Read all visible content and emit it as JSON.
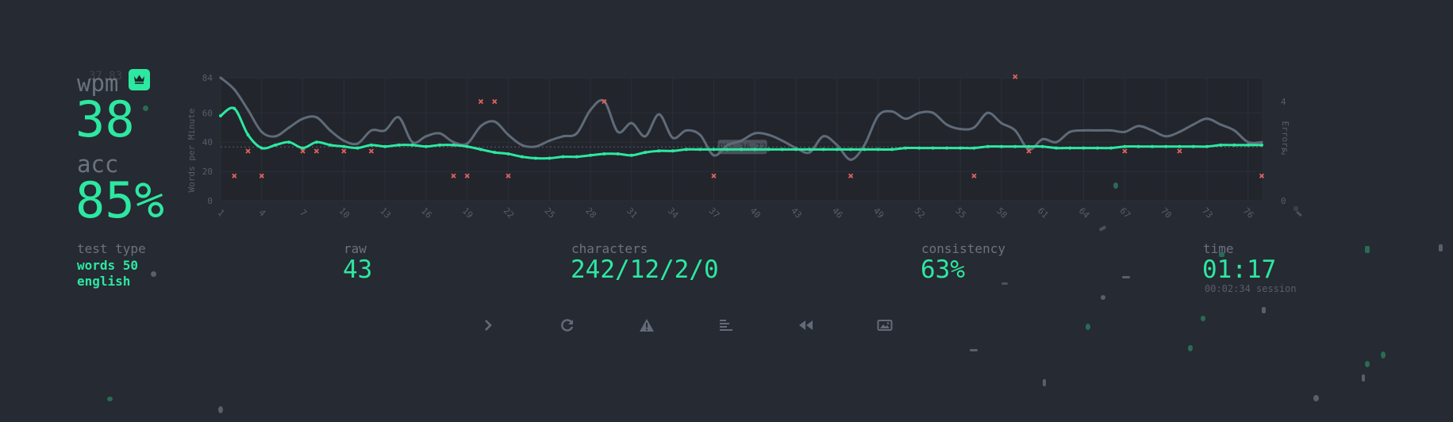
{
  "result": {
    "wpm_label": "wpm",
    "wpm_value": "38",
    "acc_label": "acc",
    "acc_value": "85%",
    "pb_ghost": "37.83 wpm"
  },
  "stats": {
    "test_type_label": "test type",
    "test_type_line1": "words 50",
    "test_type_line2": "english",
    "raw_label": "raw",
    "raw_value": "43",
    "characters_label": "characters",
    "characters_value": "242/12/2/0",
    "consistency_label": "consistency",
    "consistency_value": "63%",
    "time_label": "time",
    "time_value": "01:17",
    "session": "00:02:34 session"
  },
  "buttons": [
    {
      "icon": "chevron-right-icon",
      "label": "next test"
    },
    {
      "icon": "restart-icon",
      "label": "restart test"
    },
    {
      "icon": "warning-icon",
      "label": "report"
    },
    {
      "icon": "words-history-icon",
      "label": "words history"
    },
    {
      "icon": "replay-icon",
      "label": "watch replay"
    },
    {
      "icon": "screenshot-icon",
      "label": "save screenshot"
    }
  ],
  "colors": {
    "background": "#262a33",
    "accent": "#2de8a0",
    "raw_line": "#5f6b78",
    "error": "#e0625c",
    "muted": "#646b78"
  },
  "chart_data": {
    "type": "line",
    "ylabel": "Words per Minute",
    "y2label": "Errors",
    "pb_label": "PB: 36.72",
    "pb_value": 36.72,
    "ylim": [
      0,
      84
    ],
    "yticks": [
      0,
      20,
      40,
      60,
      84
    ],
    "y2lim": [
      0,
      4
    ],
    "y2ticks": [
      0,
      2,
      4
    ],
    "x_ticks": [
      1,
      4,
      7,
      10,
      13,
      16,
      19,
      22,
      25,
      28,
      31,
      34,
      37,
      40,
      43,
      46,
      49,
      52,
      55,
      58,
      61,
      64,
      67,
      70,
      73,
      76
    ],
    "xlim": [
      1,
      77
    ],
    "series": [
      {
        "name": "wpm",
        "values": [
          58,
          63,
          45,
          36,
          38,
          40,
          36,
          40,
          38,
          37,
          36,
          38,
          37,
          38,
          38,
          37,
          38,
          38,
          37,
          35,
          33,
          32,
          30,
          29,
          29,
          30,
          30,
          31,
          32,
          32,
          31,
          33,
          34,
          34,
          35,
          35,
          35,
          35,
          35,
          35,
          35,
          35,
          35,
          35,
          35,
          35,
          35,
          35,
          35,
          35,
          36,
          36,
          36,
          36,
          36,
          36,
          37,
          37,
          37,
          37,
          37,
          36,
          36,
          36,
          36,
          36,
          37,
          37,
          37,
          37,
          37,
          37,
          37,
          38,
          38,
          38,
          38
        ]
      },
      {
        "name": "raw",
        "values": [
          84,
          76,
          62,
          47,
          44,
          50,
          56,
          57,
          48,
          41,
          39,
          48,
          48,
          57,
          40,
          44,
          46,
          40,
          39,
          51,
          54,
          45,
          38,
          37,
          41,
          44,
          46,
          62,
          68,
          47,
          53,
          44,
          59,
          43,
          48,
          45,
          31,
          38,
          41,
          46,
          45,
          41,
          36,
          33,
          44,
          38,
          28,
          38,
          58,
          61,
          56,
          60,
          60,
          52,
          49,
          50,
          60,
          53,
          48,
          35,
          42,
          40,
          47,
          48,
          48,
          48,
          47,
          51,
          48,
          44,
          47,
          52,
          56,
          52,
          48,
          40,
          40
        ]
      },
      {
        "name": "errors",
        "points": [
          [
            2,
            1
          ],
          [
            3,
            2
          ],
          [
            4,
            1
          ],
          [
            7,
            2
          ],
          [
            8,
            2
          ],
          [
            10,
            2
          ],
          [
            12,
            2
          ],
          [
            18,
            1
          ],
          [
            19,
            1
          ],
          [
            20,
            4
          ],
          [
            21,
            4
          ],
          [
            22,
            1
          ],
          [
            29,
            4
          ],
          [
            37,
            1
          ],
          [
            47,
            1
          ],
          [
            56,
            1
          ],
          [
            59,
            5
          ],
          [
            60,
            2
          ],
          [
            67,
            2
          ],
          [
            71,
            2
          ],
          [
            77,
            1
          ]
        ]
      }
    ]
  }
}
